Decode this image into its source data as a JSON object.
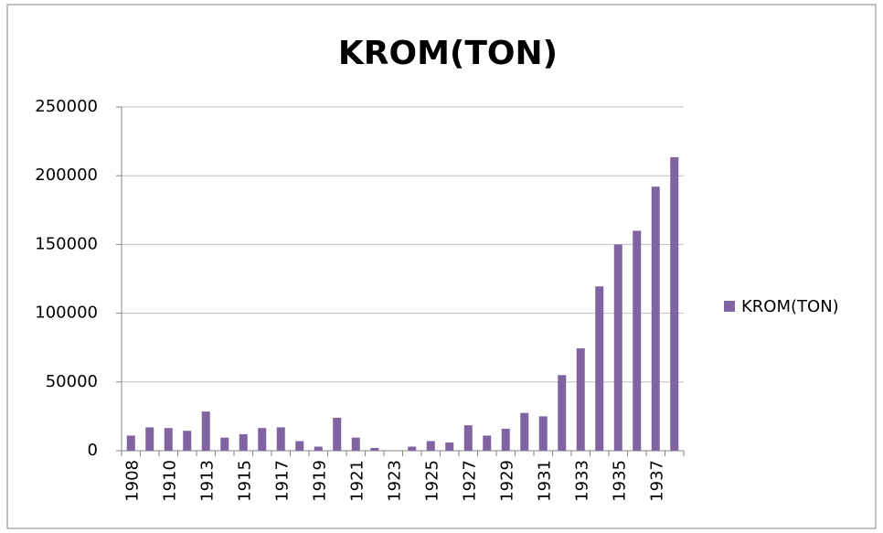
{
  "chart_data": {
    "type": "bar",
    "title": "KROM(TON)",
    "categories": [
      "1908",
      null,
      "1910",
      null,
      "1913",
      null,
      "1915",
      null,
      "1917",
      null,
      "1919",
      null,
      "1921",
      null,
      "1923",
      null,
      "1925",
      null,
      "1927",
      null,
      "1929",
      null,
      "1931",
      null,
      "1933",
      null,
      "1935",
      null,
      "1937",
      null
    ],
    "series": [
      {
        "name": "KROM(TON)",
        "color": "#8064a2",
        "values": [
          11000,
          17000,
          16500,
          14500,
          28500,
          9500,
          12000,
          16500,
          17000,
          7000,
          3000,
          24000,
          9500,
          2000,
          0,
          3000,
          7000,
          6000,
          18500,
          11000,
          16000,
          27500,
          25000,
          55000,
          74500,
          119500,
          150000,
          160000,
          192000,
          213500
        ]
      }
    ],
    "ylim": [
      0,
      250000
    ],
    "yticks": [
      0,
      50000,
      100000,
      150000,
      200000,
      250000
    ],
    "grid": true,
    "legend": "right"
  }
}
